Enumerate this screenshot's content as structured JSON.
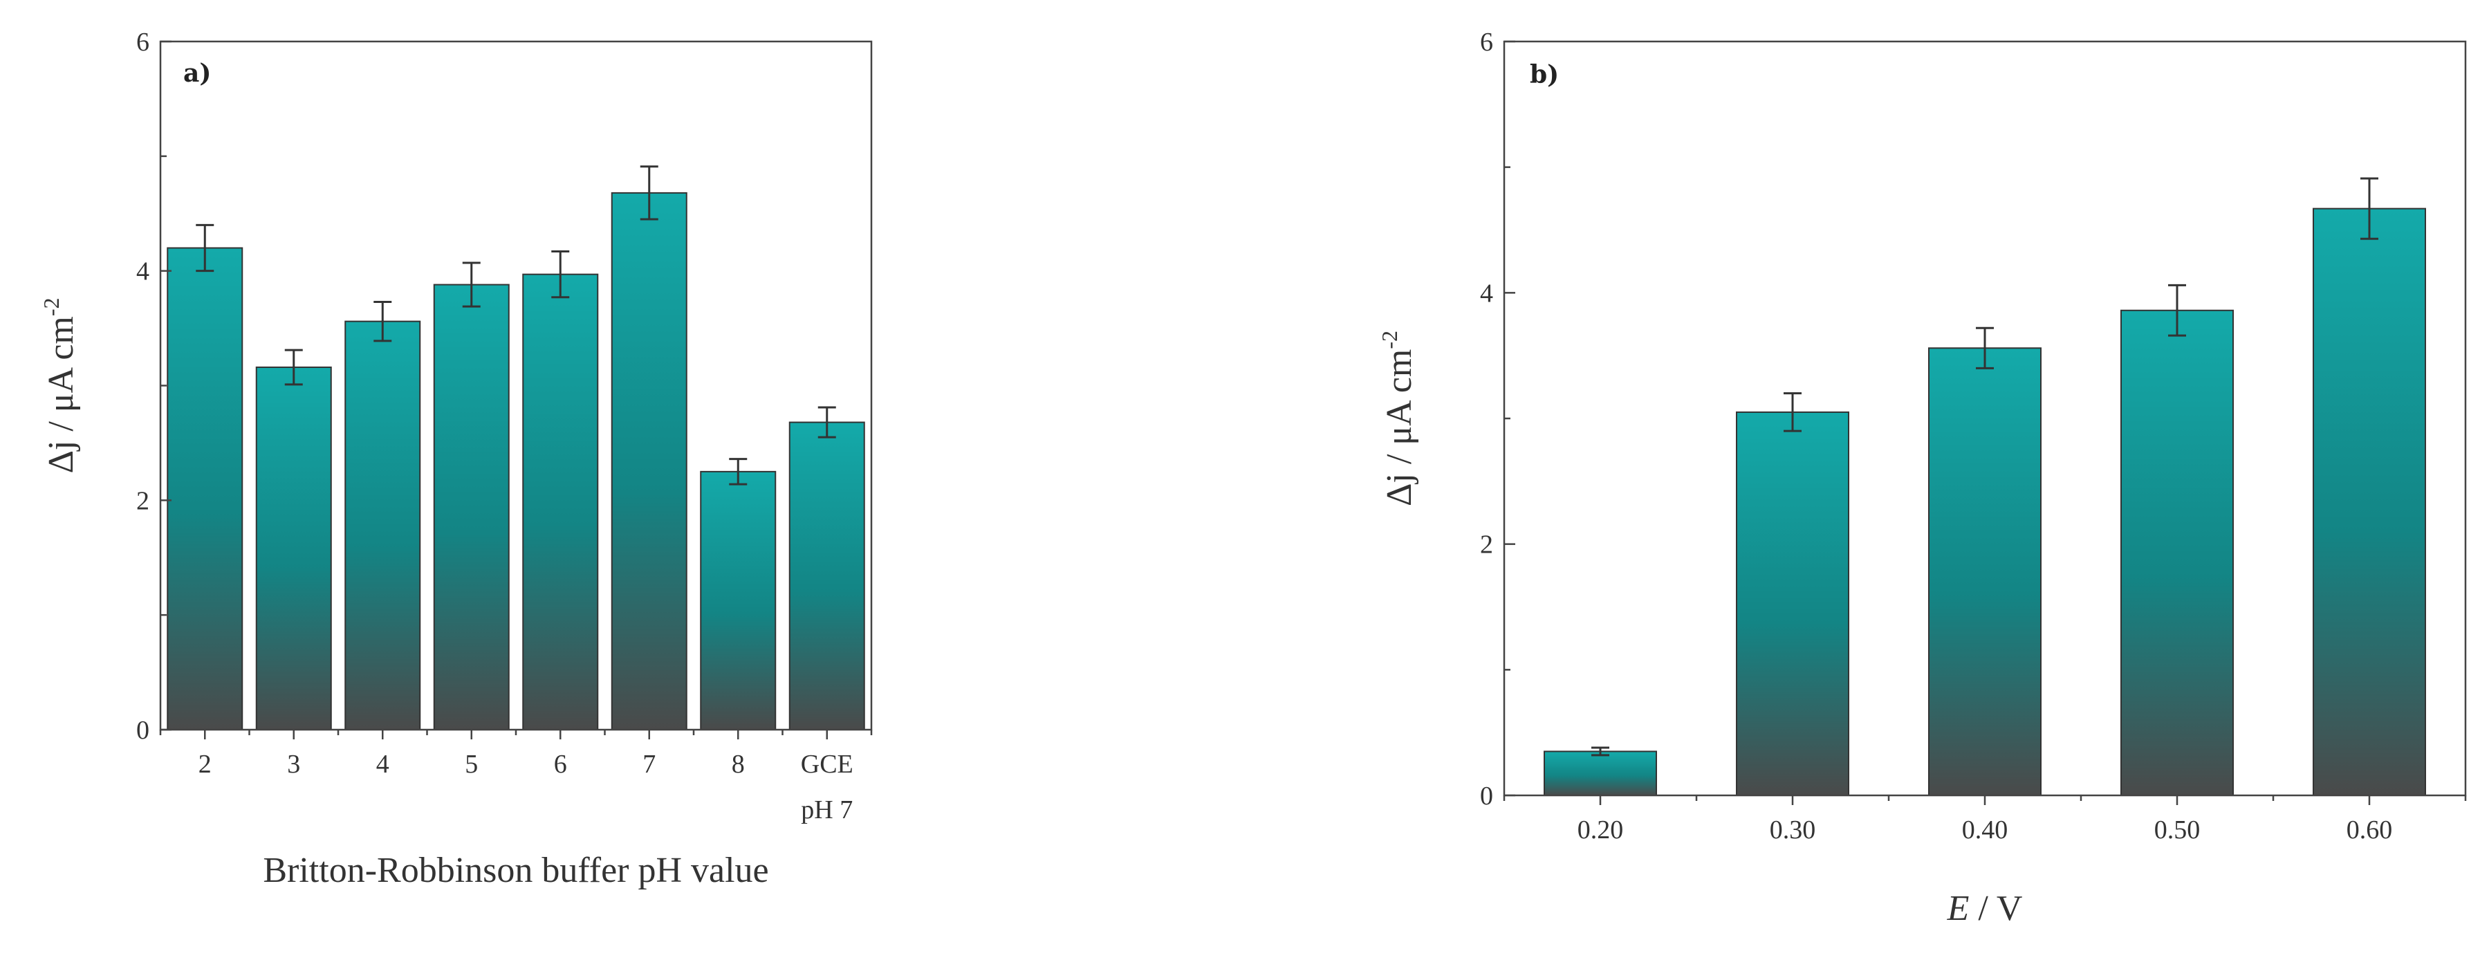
{
  "colors": {
    "bar_top": "#14aaaa",
    "bar_mid": "#138585",
    "bar_bottom": "#4a4a4a",
    "frame": "#444444"
  },
  "chart_data": [
    {
      "type": "bar",
      "panel_label": "a)",
      "categories": [
        "2",
        "3",
        "4",
        "5",
        "6",
        "7",
        "8",
        "GCE"
      ],
      "category_sublabels": [
        "",
        "",
        "",
        "",
        "",
        "",
        "",
        "pH 7"
      ],
      "values": [
        4.2,
        3.16,
        3.56,
        3.88,
        3.97,
        4.68,
        2.25,
        2.68
      ],
      "errors": [
        0.2,
        0.15,
        0.17,
        0.19,
        0.2,
        0.23,
        0.11,
        0.13
      ],
      "xlabel": "Britton-Robbinson buffer pH value",
      "ylabel_main": "Δj / μA cm",
      "ylabel_sup": "-2",
      "ylim": [
        0,
        6
      ],
      "yticks": [
        "0",
        "2",
        "4",
        "6"
      ],
      "grid": false,
      "legend": "none"
    },
    {
      "type": "bar",
      "panel_label": "b)",
      "categories": [
        "0.20",
        "0.30",
        "0.40",
        "0.50",
        "0.60"
      ],
      "values": [
        0.35,
        3.05,
        3.56,
        3.86,
        4.67
      ],
      "errors": [
        0.03,
        0.15,
        0.16,
        0.2,
        0.24
      ],
      "xlabel_var": "E",
      "xlabel_unit": " / V",
      "ylabel_main": "Δj / μA cm",
      "ylabel_sup": "-2",
      "ylim": [
        0,
        6
      ],
      "yticks": [
        "0",
        "2",
        "4",
        "6"
      ],
      "grid": false,
      "legend": "none"
    }
  ]
}
